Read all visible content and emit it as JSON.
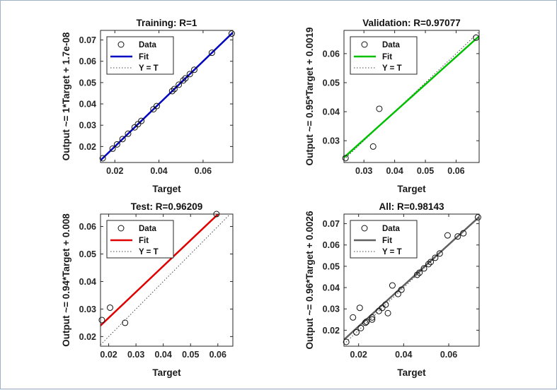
{
  "chart_data": [
    {
      "type": "scatter",
      "title": "Training: R=1",
      "xlabel": "Target",
      "ylabel": "Output ~= 1*Target + 1.7e-08",
      "xlim": [
        0.0135,
        0.0735
      ],
      "ylim": [
        0.0125,
        0.0745
      ],
      "xticks": [
        0.02,
        0.04,
        0.06
      ],
      "xtick_labels": [
        "0.02",
        "0.04",
        "0.06"
      ],
      "yticks": [
        0.02,
        0.03,
        0.04,
        0.05,
        0.06,
        0.07
      ],
      "ytick_labels": [
        "0.02",
        "0.03",
        "0.04",
        "0.05",
        "0.06",
        "0.07"
      ],
      "fit": {
        "slope": 1,
        "intercept": 1.7e-08,
        "color": "#0000c0"
      },
      "points": {
        "x": [
          0.0145,
          0.019,
          0.021,
          0.0235,
          0.026,
          0.029,
          0.0305,
          0.032,
          0.0375,
          0.039,
          0.046,
          0.047,
          0.049,
          0.051,
          0.052,
          0.054,
          0.056,
          0.064,
          0.073
        ],
        "y": [
          0.0145,
          0.019,
          0.021,
          0.0235,
          0.026,
          0.029,
          0.0305,
          0.032,
          0.0375,
          0.039,
          0.046,
          0.047,
          0.049,
          0.051,
          0.052,
          0.054,
          0.056,
          0.064,
          0.073
        ]
      },
      "legend": [
        "Data",
        "Fit",
        "Y = T"
      ]
    },
    {
      "type": "scatter",
      "title": "Validation: R=0.97077",
      "xlabel": "Target",
      "ylabel": "Output ~= 0.95*Target + 0.0019",
      "xlim": [
        0.0235,
        0.0675
      ],
      "ylim": [
        0.0225,
        0.068
      ],
      "xticks": [
        0.03,
        0.04,
        0.05,
        0.06
      ],
      "xtick_labels": [
        "0.03",
        "0.04",
        "0.05",
        "0.06"
      ],
      "yticks": [
        0.03,
        0.04,
        0.05,
        0.06
      ],
      "ytick_labels": [
        "0.03",
        "0.04",
        "0.05",
        "0.06"
      ],
      "fit": {
        "slope": 0.95,
        "intercept": 0.0019,
        "color": "#00c000"
      },
      "points": {
        "x": [
          0.024,
          0.033,
          0.035,
          0.0665
        ],
        "y": [
          0.024,
          0.028,
          0.041,
          0.0655
        ]
      },
      "legend": [
        "Data",
        "Fit",
        "Y = T"
      ]
    },
    {
      "type": "scatter",
      "title": "Test: R=0.96209",
      "xlabel": "Target",
      "ylabel": "Output ~= 0.94*Target + 0.008",
      "xlim": [
        0.017,
        0.0655
      ],
      "ylim": [
        0.0165,
        0.0645
      ],
      "xticks": [
        0.02,
        0.03,
        0.04,
        0.05,
        0.06
      ],
      "xtick_labels": [
        "0.02",
        "0.03",
        "0.04",
        "0.05",
        "0.06"
      ],
      "yticks": [
        0.02,
        0.03,
        0.04,
        0.05,
        0.06
      ],
      "ytick_labels": [
        "0.02",
        "0.03",
        "0.04",
        "0.05",
        "0.06"
      ],
      "fit": {
        "slope": 0.94,
        "intercept": 0.008,
        "color": "#e00000"
      },
      "points": {
        "x": [
          0.0175,
          0.0205,
          0.026,
          0.0595
        ],
        "y": [
          0.026,
          0.0305,
          0.025,
          0.0645
        ]
      },
      "legend": [
        "Data",
        "Fit",
        "Y = T"
      ]
    },
    {
      "type": "scatter",
      "title": "All: R=0.98143",
      "xlabel": "Target",
      "ylabel": "Output ~= 0.96*Target + 0.0026",
      "xlim": [
        0.0135,
        0.0735
      ],
      "ylim": [
        0.0125,
        0.0745
      ],
      "xticks": [
        0.02,
        0.04,
        0.06
      ],
      "xtick_labels": [
        "0.02",
        "0.04",
        "0.06"
      ],
      "yticks": [
        0.02,
        0.03,
        0.04,
        0.05,
        0.06,
        0.07
      ],
      "ytick_labels": [
        "0.02",
        "0.03",
        "0.04",
        "0.05",
        "0.06",
        "0.07"
      ],
      "fit": {
        "slope": 0.96,
        "intercept": 0.0026,
        "color": "#606060"
      },
      "points": {
        "x": [
          0.0145,
          0.0175,
          0.019,
          0.0205,
          0.021,
          0.023,
          0.0235,
          0.026,
          0.026,
          0.029,
          0.0305,
          0.032,
          0.033,
          0.035,
          0.0375,
          0.039,
          0.046,
          0.047,
          0.049,
          0.051,
          0.052,
          0.054,
          0.056,
          0.0595,
          0.064,
          0.0665,
          0.073
        ],
        "y": [
          0.0145,
          0.026,
          0.019,
          0.0305,
          0.021,
          0.0235,
          0.024,
          0.025,
          0.026,
          0.029,
          0.0305,
          0.032,
          0.028,
          0.041,
          0.037,
          0.039,
          0.046,
          0.047,
          0.049,
          0.051,
          0.052,
          0.054,
          0.056,
          0.0645,
          0.064,
          0.0655,
          0.073
        ]
      },
      "legend": [
        "Data",
        "Fit",
        "Y = T"
      ]
    }
  ]
}
